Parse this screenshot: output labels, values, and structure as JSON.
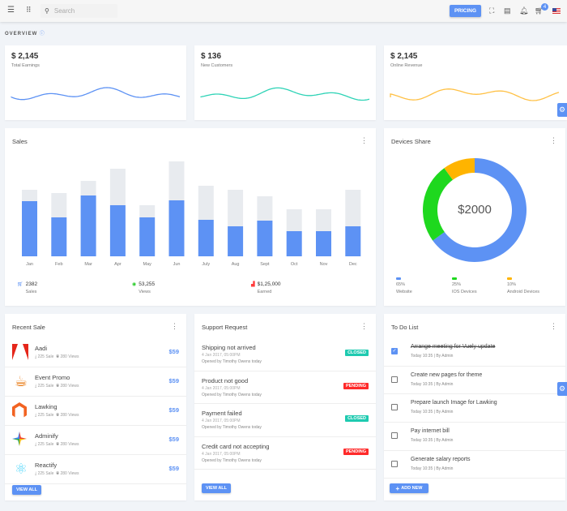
{
  "topbar": {
    "search_placeholder": "Search",
    "pricing": "PRICING",
    "cart_count": "4"
  },
  "overview": "OVERVIEW",
  "stats": [
    {
      "value": "$ 2,145",
      "label": "Total Earnings",
      "color": "#5d92f4"
    },
    {
      "value": "$ 136",
      "label": "New Customers",
      "color": "#2ed3b6"
    },
    {
      "value": "$ 2,145",
      "label": "Online Revenue",
      "color": "#ffc146"
    }
  ],
  "sales": {
    "title": "Sales",
    "chart_data": {
      "type": "bar",
      "stacked": true,
      "categories": [
        "Jan",
        "Feb",
        "Mar",
        "Apr",
        "May",
        "Jun",
        "July",
        "Aug",
        "Sept",
        "Oct",
        "Nov",
        "Dec"
      ],
      "series": [
        {
          "values": [
            68,
            48,
            75,
            63,
            48,
            69,
            45,
            37,
            44,
            31,
            31,
            37
          ],
          "color": "#5d92f4"
        },
        {
          "values": [
            14,
            30,
            18,
            45,
            15,
            48,
            42,
            45,
            30,
            27,
            27,
            45
          ],
          "color": "#e8ebef"
        }
      ]
    },
    "footer": [
      {
        "value": "2382",
        "label": "Sales",
        "icon": "cart-icon",
        "color": "#5d92f4"
      },
      {
        "value": "53,255",
        "label": "Views",
        "icon": "eye-icon",
        "color": "#2bcc2b"
      },
      {
        "value": "$1,25,000",
        "label": "Earned",
        "icon": "chart-icon",
        "color": "#ff3b3b"
      }
    ]
  },
  "devices": {
    "title": "Devices Share",
    "center": "$2000",
    "chart_data": {
      "type": "pie",
      "donut": true,
      "labels": [
        "Website",
        "IOS Devices",
        "Android Devices"
      ],
      "values": [
        65,
        25,
        10
      ],
      "colors": [
        "#5d92f4",
        "#1ed81e",
        "#ffb400"
      ]
    },
    "legend": [
      {
        "pct": "65%",
        "label": "Website"
      },
      {
        "pct": "25%",
        "label": "IOS Devices"
      },
      {
        "pct": "10%",
        "label": "Android Devices"
      }
    ]
  },
  "recent_sale": {
    "title": "Recent Sale",
    "button": "VIEW ALL",
    "items": [
      {
        "name": "Aadi",
        "sales": "225 Sale",
        "views": "280 Views",
        "price": "$59",
        "logo": "adobe-logo"
      },
      {
        "name": "Event Promo",
        "sales": "225 Sale",
        "views": "280 Views",
        "price": "$59",
        "logo": "java-logo"
      },
      {
        "name": "Lawking",
        "sales": "225 Sale",
        "views": "280 Views",
        "price": "$59",
        "logo": "magento-logo"
      },
      {
        "name": "Adminify",
        "sales": "225 Sale",
        "views": "280 Views",
        "price": "$59",
        "logo": "pinwheel-logo"
      },
      {
        "name": "Reactify",
        "sales": "225 Sale",
        "views": "280 Views",
        "price": "$59",
        "logo": "react-logo"
      }
    ]
  },
  "support": {
    "title": "Support Request",
    "button": "VIEW ALL",
    "items": [
      {
        "title": "Shipping not arrived",
        "date": "4 Jan 2017, 05:00PM",
        "opened": "Opened by Timothy Owens today",
        "status": "CLOSED"
      },
      {
        "title": "Product not good",
        "date": "4 Jan 2017, 05:00PM",
        "opened": "Opened by Timothy Owens today",
        "status": "PENDING"
      },
      {
        "title": "Payment failed",
        "date": "4 Jan 2017, 05:00PM",
        "opened": "Opened by Timothy Owens today",
        "status": "CLOSED"
      },
      {
        "title": "Credit card not accepting",
        "date": "4 Jan 2017, 05:00PM",
        "opened": "Opened by Timothy Owens today",
        "status": "PENDING"
      }
    ],
    "status_colors": {
      "CLOSED": "#1ecab0",
      "PENDING": "#ff2a2a"
    }
  },
  "todo": {
    "title": "To Do List",
    "button": "ADD NEW",
    "items": [
      {
        "text": "Arrange meeting for Vuely update",
        "meta": "Today 10:35 | By Admin",
        "done": true
      },
      {
        "text": "Create new pages for theme",
        "meta": "Today 10:35 | By Admin",
        "done": false
      },
      {
        "text": "Prepare launch Image for Lawking",
        "meta": "Today 10:35 | By Admin",
        "done": false
      },
      {
        "text": "Pay internet bill",
        "meta": "Today 10:35 | By Admin",
        "done": false
      },
      {
        "text": "Generate salary reports",
        "meta": "Today 10:35 | By Admin",
        "done": false
      }
    ]
  }
}
